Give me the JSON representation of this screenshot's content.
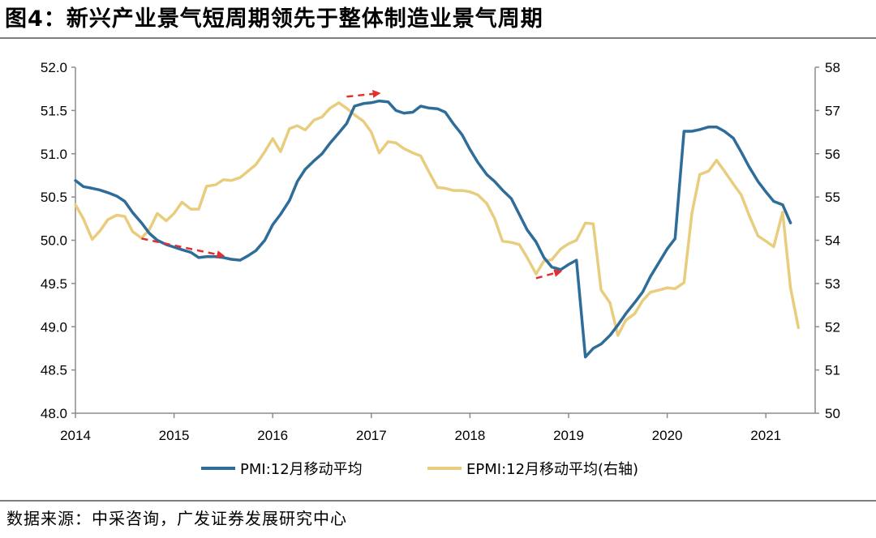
{
  "header": {
    "title": "图4：新兴产业景气短周期领先于整体制造业景气周期"
  },
  "footer": {
    "source": "数据来源：中采咨询，广发证券发展研究中心"
  },
  "chart_data": {
    "type": "line",
    "title": "新兴产业景气短周期领先于整体制造业景气周期",
    "x_ticks": [
      "2014",
      "2015",
      "2016",
      "2017",
      "2018",
      "2019",
      "2020",
      "2021"
    ],
    "x_range": [
      2014.0,
      2021.5
    ],
    "y_left": {
      "range": [
        48.0,
        52.0
      ],
      "ticks": [
        "48.0",
        "48.5",
        "49.0",
        "49.5",
        "50.0",
        "50.5",
        "51.0",
        "51.5",
        "52.0"
      ]
    },
    "y_right": {
      "range": [
        50,
        58
      ],
      "ticks": [
        "50",
        "51",
        "52",
        "53",
        "54",
        "55",
        "56",
        "57",
        "58"
      ]
    },
    "grid": false,
    "legend_position": "bottom",
    "series": [
      {
        "name": "PMI:12月移动平均",
        "axis": "left",
        "color": "#2e6c99",
        "points": [
          [
            2014.0,
            50.69
          ],
          [
            2014.08,
            50.62
          ],
          [
            2014.17,
            50.6
          ],
          [
            2014.25,
            50.58
          ],
          [
            2014.33,
            50.55
          ],
          [
            2014.42,
            50.51
          ],
          [
            2014.5,
            50.45
          ],
          [
            2014.58,
            50.32
          ],
          [
            2014.67,
            50.2
          ],
          [
            2014.75,
            50.08
          ],
          [
            2014.83,
            50.0
          ],
          [
            2014.92,
            49.95
          ],
          [
            2015.0,
            49.92
          ],
          [
            2015.08,
            49.89
          ],
          [
            2015.17,
            49.86
          ],
          [
            2015.25,
            49.8
          ],
          [
            2015.33,
            49.81
          ],
          [
            2015.42,
            49.81
          ],
          [
            2015.5,
            49.8
          ],
          [
            2015.58,
            49.78
          ],
          [
            2015.67,
            49.77
          ],
          [
            2015.75,
            49.82
          ],
          [
            2015.83,
            49.88
          ],
          [
            2015.92,
            50.0
          ],
          [
            2016.0,
            50.18
          ],
          [
            2016.08,
            50.3
          ],
          [
            2016.17,
            50.46
          ],
          [
            2016.25,
            50.68
          ],
          [
            2016.33,
            50.82
          ],
          [
            2016.42,
            50.92
          ],
          [
            2016.5,
            51.0
          ],
          [
            2016.58,
            51.12
          ],
          [
            2016.67,
            51.24
          ],
          [
            2016.75,
            51.35
          ],
          [
            2016.83,
            51.55
          ],
          [
            2016.92,
            51.58
          ],
          [
            2017.0,
            51.59
          ],
          [
            2017.08,
            51.61
          ],
          [
            2017.17,
            51.6
          ],
          [
            2017.25,
            51.5
          ],
          [
            2017.33,
            51.47
          ],
          [
            2017.42,
            51.48
          ],
          [
            2017.5,
            51.55
          ],
          [
            2017.58,
            51.53
          ],
          [
            2017.67,
            51.52
          ],
          [
            2017.75,
            51.48
          ],
          [
            2017.83,
            51.35
          ],
          [
            2017.92,
            51.22
          ],
          [
            2018.0,
            51.05
          ],
          [
            2018.08,
            50.9
          ],
          [
            2018.17,
            50.76
          ],
          [
            2018.25,
            50.68
          ],
          [
            2018.33,
            50.58
          ],
          [
            2018.42,
            50.48
          ],
          [
            2018.5,
            50.3
          ],
          [
            2018.58,
            50.12
          ],
          [
            2018.67,
            49.98
          ],
          [
            2018.75,
            49.8
          ],
          [
            2018.83,
            49.69
          ],
          [
            2018.92,
            49.66
          ],
          [
            2019.0,
            49.72
          ],
          [
            2019.08,
            49.77
          ],
          [
            2019.17,
            48.65
          ],
          [
            2019.25,
            48.75
          ],
          [
            2019.33,
            48.8
          ],
          [
            2019.42,
            48.9
          ],
          [
            2019.5,
            49.02
          ],
          [
            2019.58,
            49.15
          ],
          [
            2019.67,
            49.28
          ],
          [
            2019.75,
            49.4
          ],
          [
            2019.83,
            49.58
          ],
          [
            2019.92,
            49.75
          ],
          [
            2020.0,
            49.9
          ],
          [
            2020.08,
            50.02
          ],
          [
            2020.17,
            51.26
          ],
          [
            2020.25,
            51.26
          ],
          [
            2020.33,
            51.28
          ],
          [
            2020.42,
            51.31
          ],
          [
            2020.5,
            51.31
          ],
          [
            2020.58,
            51.26
          ],
          [
            2020.67,
            51.18
          ],
          [
            2020.75,
            51.02
          ],
          [
            2020.83,
            50.85
          ],
          [
            2020.92,
            50.68
          ],
          [
            2021.0,
            50.56
          ],
          [
            2021.08,
            50.45
          ],
          [
            2021.17,
            50.41
          ],
          [
            2021.25,
            50.2
          ]
        ]
      },
      {
        "name": "EPMI:12月移动平均(右轴)",
        "axis": "right",
        "color": "#e8cd7e",
        "points": [
          [
            2014.0,
            54.82
          ],
          [
            2014.08,
            54.5
          ],
          [
            2014.17,
            54.02
          ],
          [
            2014.25,
            54.22
          ],
          [
            2014.33,
            54.48
          ],
          [
            2014.42,
            54.58
          ],
          [
            2014.5,
            54.55
          ],
          [
            2014.58,
            54.2
          ],
          [
            2014.67,
            54.05
          ],
          [
            2014.75,
            54.25
          ],
          [
            2014.83,
            54.62
          ],
          [
            2014.92,
            54.45
          ],
          [
            2015.0,
            54.62
          ],
          [
            2015.08,
            54.88
          ],
          [
            2015.17,
            54.72
          ],
          [
            2015.25,
            54.72
          ],
          [
            2015.33,
            55.25
          ],
          [
            2015.42,
            55.28
          ],
          [
            2015.5,
            55.4
          ],
          [
            2015.58,
            55.38
          ],
          [
            2015.67,
            55.45
          ],
          [
            2015.75,
            55.6
          ],
          [
            2015.83,
            55.75
          ],
          [
            2015.92,
            56.05
          ],
          [
            2016.0,
            56.35
          ],
          [
            2016.08,
            56.05
          ],
          [
            2016.17,
            56.58
          ],
          [
            2016.25,
            56.65
          ],
          [
            2016.33,
            56.55
          ],
          [
            2016.42,
            56.78
          ],
          [
            2016.5,
            56.85
          ],
          [
            2016.58,
            57.05
          ],
          [
            2016.67,
            57.18
          ],
          [
            2016.75,
            57.05
          ],
          [
            2016.83,
            56.9
          ],
          [
            2016.92,
            56.75
          ],
          [
            2017.0,
            56.5
          ],
          [
            2017.08,
            56.02
          ],
          [
            2017.17,
            56.28
          ],
          [
            2017.25,
            56.25
          ],
          [
            2017.33,
            56.12
          ],
          [
            2017.42,
            56.02
          ],
          [
            2017.5,
            55.95
          ],
          [
            2017.58,
            55.6
          ],
          [
            2017.67,
            55.22
          ],
          [
            2017.75,
            55.2
          ],
          [
            2017.83,
            55.15
          ],
          [
            2017.92,
            55.15
          ],
          [
            2018.0,
            55.12
          ],
          [
            2018.08,
            55.05
          ],
          [
            2018.17,
            54.85
          ],
          [
            2018.25,
            54.5
          ],
          [
            2018.33,
            53.98
          ],
          [
            2018.42,
            53.95
          ],
          [
            2018.5,
            53.9
          ],
          [
            2018.58,
            53.6
          ],
          [
            2018.67,
            53.22
          ],
          [
            2018.75,
            53.52
          ],
          [
            2018.83,
            53.55
          ],
          [
            2018.92,
            53.8
          ],
          [
            2019.0,
            53.92
          ],
          [
            2019.08,
            54.0
          ],
          [
            2019.17,
            54.4
          ],
          [
            2019.25,
            54.38
          ],
          [
            2019.33,
            52.85
          ],
          [
            2019.42,
            52.55
          ],
          [
            2019.5,
            51.8
          ],
          [
            2019.58,
            52.15
          ],
          [
            2019.67,
            52.3
          ],
          [
            2019.75,
            52.6
          ],
          [
            2019.83,
            52.8
          ],
          [
            2019.92,
            52.85
          ],
          [
            2020.0,
            52.9
          ],
          [
            2020.08,
            52.88
          ],
          [
            2020.17,
            53.02
          ],
          [
            2020.25,
            54.62
          ],
          [
            2020.33,
            55.52
          ],
          [
            2020.42,
            55.6
          ],
          [
            2020.5,
            55.85
          ],
          [
            2020.58,
            55.6
          ],
          [
            2020.67,
            55.3
          ],
          [
            2020.75,
            55.05
          ],
          [
            2020.83,
            54.58
          ],
          [
            2020.92,
            54.1
          ],
          [
            2021.0,
            53.98
          ],
          [
            2021.08,
            53.85
          ],
          [
            2021.17,
            54.65
          ],
          [
            2021.25,
            52.9
          ],
          [
            2021.33,
            51.98
          ]
        ]
      }
    ],
    "annotations": [
      {
        "type": "dashed-arrow",
        "color": "#e03030",
        "from": [
          2014.67,
          50.02
        ],
        "to": [
          2015.5,
          49.82
        ],
        "axis": "left"
      },
      {
        "type": "dashed-arrow",
        "color": "#e03030",
        "from": [
          2016.75,
          51.66
        ],
        "to": [
          2017.08,
          51.7
        ],
        "axis": "left"
      },
      {
        "type": "dashed-arrow",
        "color": "#e03030",
        "from": [
          2018.67,
          49.56
        ],
        "to": [
          2018.92,
          49.64
        ],
        "axis": "left"
      }
    ]
  }
}
